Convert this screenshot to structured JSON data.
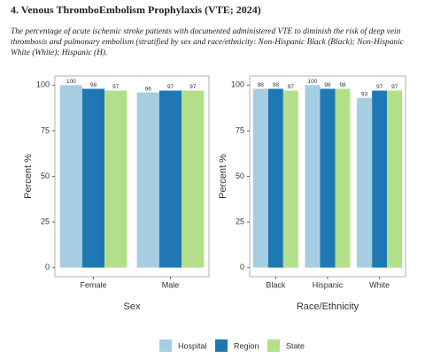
{
  "title": "4. Venous ThromboEmbolism Prophylaxis (VTE; 2024)",
  "description": "The percentage of acute ischemic stroke patients with documented administered VTE to diminish the risk of deep vein thrombosis and pulmonary embolism (stratified by sex and race/ethnicity: Non-Hispanic Black (Black); Non-Hispanic White (White); Hispanic (H).",
  "chart_data": [
    {
      "type": "bar",
      "xlabel": "Sex",
      "ylabel": "Percent %",
      "categories": [
        "Female",
        "Male"
      ],
      "series": [
        {
          "name": "Hospital",
          "color": "#a6cee3",
          "values": [
            100,
            96
          ]
        },
        {
          "name": "Region",
          "color": "#1f78b4",
          "values": [
            98,
            97
          ]
        },
        {
          "name": "State",
          "color": "#b2df8a",
          "values": [
            97,
            97
          ]
        }
      ],
      "ylim": [
        -5,
        105
      ],
      "yticks": [
        0,
        25,
        50,
        75,
        100
      ],
      "grid": false
    },
    {
      "type": "bar",
      "xlabel": "Race/Ethnicity",
      "ylabel": "Percent %",
      "categories": [
        "Black",
        "Hispanic",
        "White"
      ],
      "series": [
        {
          "color": "#a6cee3",
          "values": [
            98,
            100,
            93
          ]
        },
        {
          "color": "#1f78b4",
          "values": [
            98,
            98,
            97
          ]
        },
        {
          "color": "#b2df8a",
          "values": [
            97,
            98,
            97
          ]
        }
      ],
      "ylim": [
        -5,
        105
      ],
      "yticks": [
        0,
        25,
        50,
        75,
        100
      ],
      "grid": false
    }
  ]
}
